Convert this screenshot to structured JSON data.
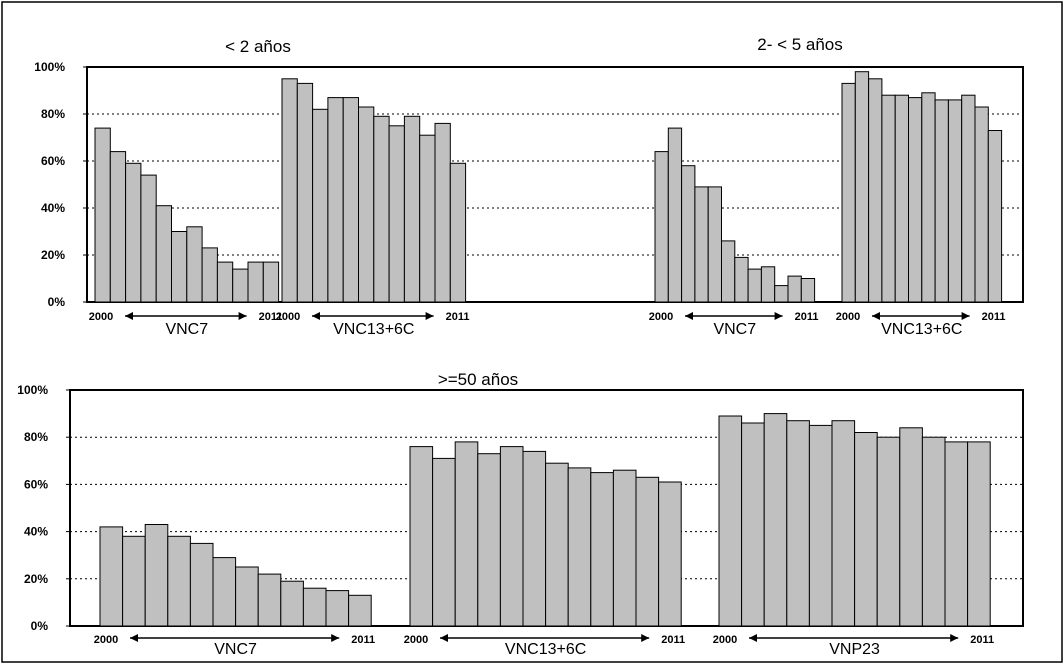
{
  "colors": {
    "bar_fill": "#c0c0c0",
    "bar_stroke": "#000000",
    "background": "#ffffff"
  },
  "chart_data": [
    {
      "type": "bar",
      "title": "< 2 años",
      "ylim": [
        0,
        100
      ],
      "yticks": [
        "0%",
        "20%",
        "40%",
        "60%",
        "80%",
        "100%"
      ],
      "grid": true,
      "groups": [
        {
          "label": "VNC7",
          "start": "2000",
          "end": "2011",
          "values": [
            74,
            64,
            59,
            54,
            41,
            30,
            32,
            23,
            17,
            14,
            17,
            17
          ]
        },
        {
          "label": "VNC13+6C",
          "start": "2000",
          "end": "2011",
          "values": [
            95,
            93,
            82,
            87,
            87,
            83,
            79,
            75,
            79,
            71,
            76,
            59
          ]
        }
      ]
    },
    {
      "type": "bar",
      "title": "2- < 5 años",
      "ylim": [
        0,
        100
      ],
      "yticks": [
        "0%",
        "20%",
        "40%",
        "60%",
        "80%",
        "100%"
      ],
      "grid": true,
      "groups": [
        {
          "label": "VNC7",
          "start": "2000",
          "end": "2011",
          "values": [
            64,
            74,
            58,
            49,
            49,
            26,
            19,
            14,
            15,
            7,
            11,
            10
          ]
        },
        {
          "label": "VNC13+6C",
          "start": "2000",
          "end": "2011",
          "values": [
            93,
            98,
            95,
            88,
            88,
            87,
            89,
            86,
            86,
            88,
            83,
            73
          ]
        }
      ]
    },
    {
      "type": "bar",
      "title": ">=50 años",
      "ylim": [
        0,
        100
      ],
      "yticks": [
        "0%",
        "20%",
        "40%",
        "60%",
        "80%",
        "100%"
      ],
      "grid": true,
      "groups": [
        {
          "label": "VNC7",
          "start": "2000",
          "end": "2011",
          "values": [
            42,
            38,
            43,
            38,
            35,
            29,
            25,
            22,
            19,
            16,
            15,
            13
          ]
        },
        {
          "label": "VNC13+6C",
          "start": "2000",
          "end": "2011",
          "values": [
            76,
            71,
            78,
            73,
            76,
            74,
            69,
            67,
            65,
            66,
            63,
            61
          ]
        },
        {
          "label": "VNP23",
          "start": "2000",
          "end": "2011",
          "values": [
            89,
            86,
            90,
            87,
            85,
            87,
            82,
            80,
            84,
            80,
            78,
            78
          ]
        }
      ]
    }
  ]
}
